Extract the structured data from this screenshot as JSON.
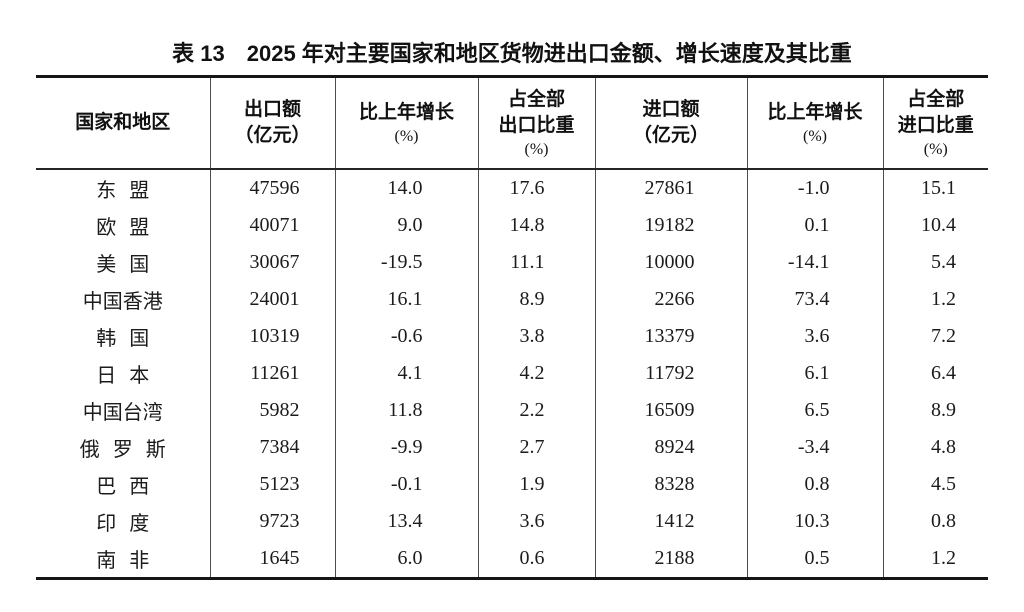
{
  "page": {
    "background": "#ffffff",
    "text_color": "#1c1c1c",
    "line_heavy": "#161616",
    "line_light": "#4d4d4d"
  },
  "table": {
    "title": "表 13　2025 年对主要国家和地区货物进出口金额、增长速度及其比重",
    "columns": [
      {
        "id": "region",
        "lines": [
          "国家和地区"
        ]
      },
      {
        "id": "export-value",
        "lines": [
          "出口额",
          "（亿元）"
        ]
      },
      {
        "id": "export-growth",
        "lines": [
          "比上年增长",
          "(%)"
        ]
      },
      {
        "id": "export-share",
        "lines": [
          "占全部",
          "出口比重",
          "(%)"
        ]
      },
      {
        "id": "import-value",
        "lines": [
          "进口额",
          "（亿元）"
        ]
      },
      {
        "id": "import-growth",
        "lines": [
          "比上年增长",
          "(%)"
        ]
      },
      {
        "id": "import-share",
        "lines": [
          "占全部",
          "进口比重",
          "(%)"
        ]
      }
    ],
    "rows": [
      {
        "region": "东盟",
        "values": [
          "47596",
          "14.0",
          "17.6",
          "27861",
          "-1.0",
          "15.1"
        ]
      },
      {
        "region": "欧盟",
        "values": [
          "40071",
          "9.0",
          "14.8",
          "19182",
          "0.1",
          "10.4"
        ]
      },
      {
        "region": "美国",
        "values": [
          "30067",
          "-19.5",
          "11.1",
          "10000",
          "-14.1",
          "5.4"
        ]
      },
      {
        "region": "中国香港",
        "values": [
          "24001",
          "16.1",
          "8.9",
          "2266",
          "73.4",
          "1.2"
        ]
      },
      {
        "region": "韩国",
        "values": [
          "10319",
          "-0.6",
          "3.8",
          "13379",
          "3.6",
          "7.2"
        ]
      },
      {
        "region": "日本",
        "values": [
          "11261",
          "4.1",
          "4.2",
          "11792",
          "6.1",
          "6.4"
        ]
      },
      {
        "region": "中国台湾",
        "values": [
          "5982",
          "11.8",
          "2.2",
          "16509",
          "6.5",
          "8.9"
        ]
      },
      {
        "region": "俄罗斯",
        "values": [
          "7384",
          "-9.9",
          "2.7",
          "8924",
          "-3.4",
          "4.8"
        ]
      },
      {
        "region": "巴西",
        "values": [
          "5123",
          "-0.1",
          "1.9",
          "8328",
          "0.8",
          "4.5"
        ]
      },
      {
        "region": "印度",
        "values": [
          "9723",
          "13.4",
          "3.6",
          "1412",
          "10.3",
          "0.8"
        ]
      },
      {
        "region": "南非",
        "values": [
          "1645",
          "6.0",
          "0.6",
          "2188",
          "0.5",
          "1.2"
        ]
      }
    ]
  },
  "chart_data": {
    "type": "table",
    "title": "表 13　2025 年对主要国家和地区货物进出口金额、增长速度及其比重",
    "categories": [
      "东盟",
      "欧盟",
      "美国",
      "中国香港",
      "韩国",
      "日本",
      "中国台湾",
      "俄罗斯",
      "巴西",
      "印度",
      "南非"
    ],
    "series": [
      {
        "name": "出口额（亿元）",
        "values": [
          47596,
          40071,
          30067,
          24001,
          10319,
          11261,
          5982,
          7384,
          5123,
          9723,
          1645
        ]
      },
      {
        "name": "出口比上年增长(%)",
        "values": [
          14.0,
          9.0,
          -19.5,
          16.1,
          -0.6,
          4.1,
          11.8,
          -9.9,
          -0.1,
          13.4,
          6.0
        ]
      },
      {
        "name": "占全部出口比重(%)",
        "values": [
          17.6,
          14.8,
          11.1,
          8.9,
          3.8,
          4.2,
          2.2,
          2.7,
          1.9,
          3.6,
          0.6
        ]
      },
      {
        "name": "进口额（亿元）",
        "values": [
          27861,
          19182,
          10000,
          2266,
          13379,
          11792,
          16509,
          8924,
          8328,
          1412,
          2188
        ]
      },
      {
        "name": "进口比上年增长(%)",
        "values": [
          -1.0,
          0.1,
          -14.1,
          73.4,
          3.6,
          6.1,
          6.5,
          -3.4,
          0.8,
          10.3,
          0.5
        ]
      },
      {
        "name": "占全部进口比重(%)",
        "values": [
          15.1,
          10.4,
          5.4,
          1.2,
          7.2,
          6.4,
          8.9,
          4.8,
          4.5,
          0.8,
          1.2
        ]
      }
    ]
  }
}
